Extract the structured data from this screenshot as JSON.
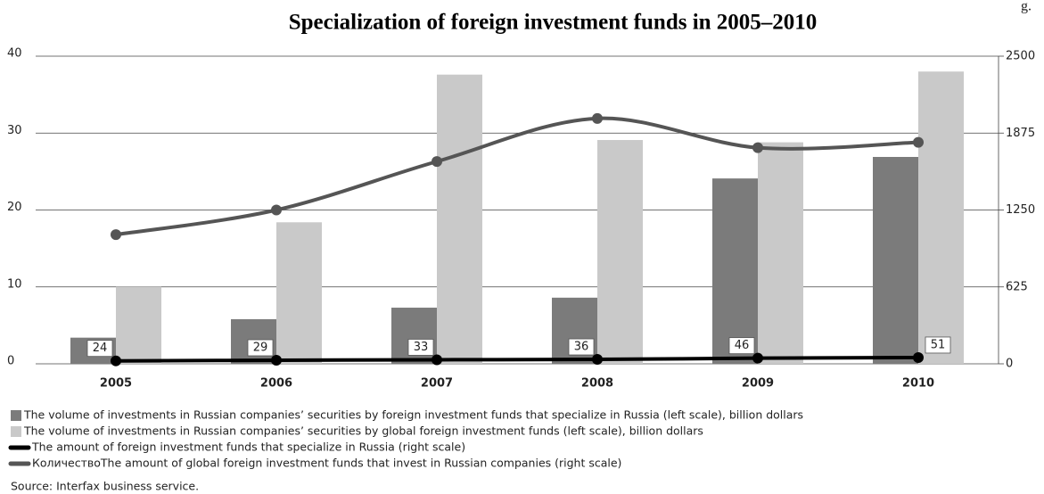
{
  "chart_data": {
    "type": "bar",
    "title": "Specialization of foreign investment funds in 2005–2010",
    "corner_label": "g.",
    "categories": [
      "2005",
      "2006",
      "2007",
      "2008",
      "2009",
      "2010"
    ],
    "series": [
      {
        "name": "The volume of investments in Russian companies’ securities by foreign investment funds that specialize in Russia (left scale), billion dollars",
        "color": "#7b7b7b",
        "type": "bar",
        "values": [
          3.4,
          5.8,
          7.3,
          8.6,
          24.1,
          26.9
        ]
      },
      {
        "name": "The volume of investments in Russian companies’ securities by global foreign investment funds (left scale), billion dollars",
        "color": "#c9c9c9",
        "type": "bar",
        "values": [
          10.0,
          18.4,
          37.6,
          29.1,
          28.8,
          38.0
        ]
      },
      {
        "name": "The amount of foreign investment funds that specialize in Russia (right scale)",
        "color": "#000000",
        "type": "line",
        "axis": "y2",
        "values": [
          24,
          29,
          33,
          36,
          46,
          51
        ]
      },
      {
        "name": "КоличествоThe amount of global foreign investment funds that invest in Russian companies (right scale)",
        "color": "#555555",
        "type": "line",
        "axis": "y2",
        "values": [
          1050,
          1250,
          1644,
          1994,
          1756,
          1800
        ]
      }
    ],
    "ylim": [
      0,
      40
    ],
    "yticks": [
      0,
      10,
      20,
      30,
      40
    ],
    "y2lim": [
      0,
      2500
    ],
    "y2ticks": [
      0,
      625,
      1250,
      1875,
      2500
    ],
    "source": "Source: Interfax business service."
  }
}
